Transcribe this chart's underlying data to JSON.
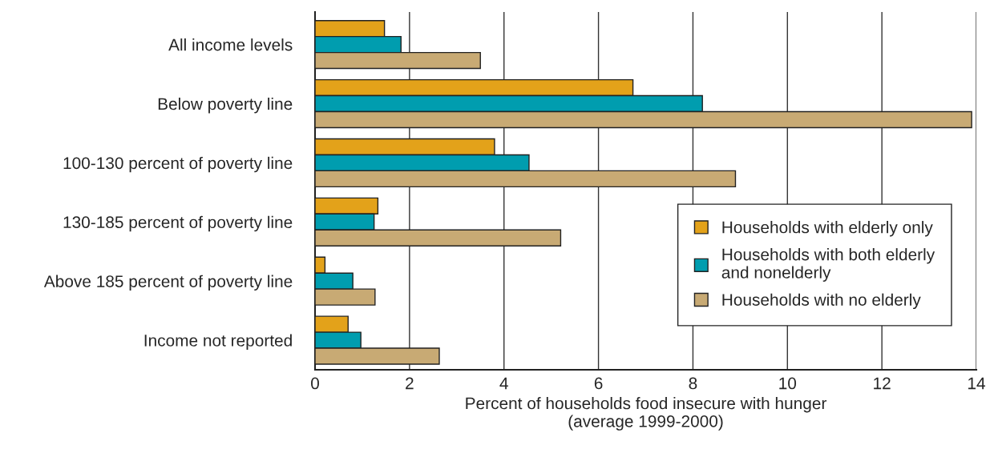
{
  "chart_data": {
    "type": "bar",
    "orientation": "horizontal",
    "xlabel": "Percent of households food insecure with hunger\n(average 1999-2000)",
    "categories": [
      "All income levels",
      "Below poverty line",
      "100-130 percent of poverty line",
      "130-185 percent of poverty line",
      "Above 185 percent of poverty line",
      "Income not reported"
    ],
    "series": [
      {
        "name": "Households with elderly only",
        "color": "#e3a21a",
        "values": [
          1.47,
          6.73,
          3.8,
          1.33,
          0.21,
          0.7
        ]
      },
      {
        "name": "Households with both elderly\nand nonelderly",
        "color": "#009daf",
        "values": [
          1.82,
          8.2,
          4.53,
          1.25,
          0.8,
          0.97
        ]
      },
      {
        "name": "Households with no elderly",
        "color": "#c8aa74",
        "values": [
          3.5,
          13.9,
          8.9,
          5.2,
          1.27,
          2.63
        ]
      }
    ],
    "xlim": [
      0,
      14
    ],
    "xticks": [
      0,
      2,
      4,
      6,
      8,
      10,
      12,
      14
    ],
    "grid": "x",
    "legend": "bottom right"
  }
}
